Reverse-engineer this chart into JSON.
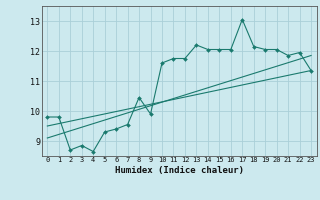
{
  "xlabel": "Humidex (Indice chaleur)",
  "bg_color": "#cce9ee",
  "grid_color": "#aacfd8",
  "line_color": "#1a7a6e",
  "xlim": [
    -0.5,
    23.5
  ],
  "ylim": [
    8.5,
    13.5
  ],
  "yticks": [
    9,
    10,
    11,
    12,
    13
  ],
  "xticks": [
    0,
    1,
    2,
    3,
    4,
    5,
    6,
    7,
    8,
    9,
    10,
    11,
    12,
    13,
    14,
    15,
    16,
    17,
    18,
    19,
    20,
    21,
    22,
    23
  ],
  "main_x": [
    0,
    1,
    2,
    3,
    4,
    5,
    6,
    7,
    8,
    9,
    10,
    11,
    12,
    13,
    14,
    15,
    16,
    17,
    18,
    19,
    20,
    21,
    22,
    23
  ],
  "main_y": [
    9.8,
    9.8,
    8.7,
    8.85,
    8.65,
    9.3,
    9.4,
    9.55,
    10.45,
    9.9,
    11.6,
    11.75,
    11.75,
    12.2,
    12.05,
    12.05,
    12.05,
    13.05,
    12.15,
    12.05,
    12.05,
    11.85,
    11.95,
    11.35
  ],
  "line1_x": [
    0,
    23
  ],
  "line1_y": [
    9.5,
    11.35
  ],
  "line2_x": [
    0,
    23
  ],
  "line2_y": [
    9.1,
    11.85
  ]
}
